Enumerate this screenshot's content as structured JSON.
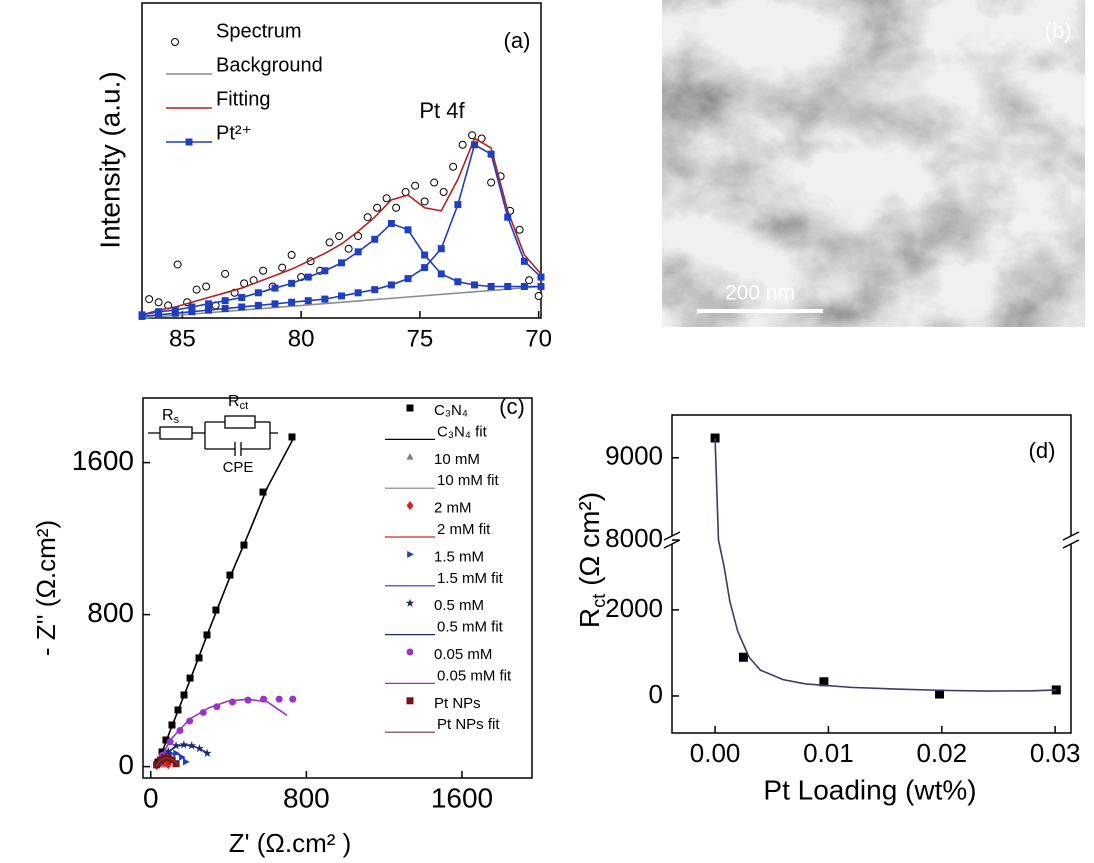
{
  "chart_data": [
    {
      "type": "line",
      "panel_label": "(a)",
      "annotation": "Pt 4f",
      "ylabel": "Intensity (a.u.)",
      "xlim": [
        86.7,
        69.9
      ],
      "xticks": [
        85,
        80,
        75,
        70
      ],
      "ylim": [
        0,
        100
      ],
      "legend": "upper left",
      "series": [
        {
          "name": "Spectrum",
          "color": "#000000",
          "style": "markers",
          "marker": "open-circle",
          "x": [
            86.4,
            86.0,
            85.6,
            85.2,
            84.8,
            84.4,
            84.0,
            83.6,
            83.2,
            82.8,
            82.4,
            82.0,
            81.6,
            81.2,
            80.8,
            80.4,
            80.0,
            79.6,
            79.2,
            78.8,
            78.4,
            78.0,
            77.6,
            77.2,
            76.8,
            76.4,
            76.0,
            75.6,
            75.2,
            74.8,
            74.4,
            74.0,
            73.6,
            73.2,
            72.8,
            72.4,
            72.0,
            71.6,
            71.2,
            70.8,
            70.4,
            70.0
          ],
          "values": [
            6,
            5,
            4,
            17,
            5,
            9,
            10,
            4,
            14,
            8,
            11,
            12,
            15,
            10,
            16,
            20,
            13,
            18,
            15,
            24,
            26,
            22,
            26,
            32,
            35,
            38,
            35,
            40,
            42,
            37,
            43,
            40,
            48,
            55,
            58,
            57,
            43,
            45,
            34,
            28,
            12,
            7
          ]
        },
        {
          "name": "Background",
          "color": "#8c8c8c",
          "style": "line",
          "x": [
            86.7,
            69.9
          ],
          "values": [
            0,
            10
          ]
        },
        {
          "name": "Fitting",
          "color": "#b22222",
          "style": "line",
          "x": [
            86.7,
            86,
            85.3,
            84.6,
            83.9,
            83.2,
            82.5,
            81.8,
            81.1,
            80.4,
            79.7,
            79,
            78.3,
            77.6,
            76.9,
            76.2,
            75.5,
            74.8,
            74.1,
            73.4,
            72.7,
            72,
            71.3,
            70.6,
            69.9
          ],
          "values": [
            1,
            2.5,
            3.5,
            5,
            6.5,
            8,
            9.5,
            11.5,
            13.5,
            15.5,
            18,
            20.5,
            23.5,
            27.5,
            32,
            37.5,
            39,
            35,
            34,
            44,
            57,
            54,
            34,
            20,
            14
          ]
        },
        {
          "name": "Pt²⁺",
          "color": "#1f3fbf",
          "style": "line+markers",
          "marker": "square",
          "x": [
            86.7,
            86,
            85.3,
            84.6,
            83.9,
            83.2,
            82.5,
            81.8,
            81.1,
            80.4,
            79.7,
            79,
            78.3,
            77.6,
            76.9,
            76.2,
            75.5,
            74.8,
            74.1,
            73.4,
            72.7,
            72,
            71.3,
            70.6,
            69.9,
            null,
            86.7,
            86,
            85.3,
            84.6,
            83.9,
            83.2,
            82.5,
            81.8,
            81.1,
            80.4,
            79.7,
            79,
            78.3,
            77.6,
            76.9,
            76.2,
            75.5,
            74.8,
            74.1,
            73.4,
            72.7,
            72,
            71.3,
            70.6,
            69.9
          ],
          "values": [
            1,
            2,
            2.5,
            3.5,
            4.5,
            5.5,
            6.5,
            8,
            9.5,
            11,
            13,
            15,
            17.5,
            21,
            25,
            30,
            28,
            20,
            14,
            11.5,
            10.5,
            10,
            10,
            10,
            10,
            null,
            0.5,
            1,
            1.5,
            2,
            2.5,
            3,
            3.5,
            4,
            4.5,
            5,
            5.5,
            6,
            7,
            8,
            9,
            10.5,
            12.5,
            16,
            22,
            36,
            55,
            52,
            32,
            18,
            13
          ]
        }
      ]
    },
    {
      "type": "image",
      "panel_label": "(b)",
      "scale_bar_label": "200 nm"
    },
    {
      "type": "scatter",
      "panel_label": "(c)",
      "xlabel": "Z' (Ω.cm² )",
      "ylabel": "- Z'' (Ω.cm²)",
      "xlim": [
        -40,
        1960
      ],
      "xticks": [
        0,
        800,
        1600
      ],
      "ylim": [
        -60,
        1940
      ],
      "yticks": [
        0,
        800,
        1600
      ],
      "legend": "upper right",
      "circuit": {
        "rs": [
          "R",
          "s"
        ],
        "rct": [
          "R",
          "ct"
        ],
        "cpe": "CPE"
      },
      "series": [
        {
          "name": "C₃N₄",
          "color": "#000000",
          "style": "markers",
          "marker": "square",
          "x": [
            37,
            58,
            78,
            109,
            140,
            171,
            202,
            248,
            289,
            335,
            407,
            479,
            577,
            726
          ],
          "values": [
            24,
            77,
            140,
            219,
            298,
            377,
            466,
            572,
            693,
            824,
            1008,
            1166,
            1445,
            1735
          ]
        },
        {
          "name": "C₃N₄ fit",
          "color": "#000000",
          "style": "line",
          "x": [
            30,
            100,
            200,
            300,
            400,
            500,
            600,
            740
          ],
          "values": [
            0,
            190,
            450,
            720,
            980,
            1220,
            1470,
            1740
          ]
        },
        {
          "name": "10 mM",
          "color": "#808080",
          "style": "markers",
          "marker": "triangle",
          "x": [
            30,
            45,
            60,
            70
          ],
          "values": [
            5,
            20,
            30,
            10
          ]
        },
        {
          "name": "10 mM fit",
          "color": "#808080",
          "style": "line",
          "x": [
            25,
            40,
            55,
            70,
            80
          ],
          "values": [
            0,
            18,
            28,
            20,
            5
          ]
        },
        {
          "name": "2 mM",
          "color": "#e02020",
          "style": "markers",
          "marker": "diamond",
          "x": [
            30,
            50,
            70,
            90
          ],
          "values": [
            5,
            20,
            25,
            10
          ]
        },
        {
          "name": "2 mM fit",
          "color": "#e02020",
          "style": "line",
          "x": [
            25,
            45,
            65,
            85,
            95
          ],
          "values": [
            0,
            18,
            25,
            14,
            4
          ]
        },
        {
          "name": "1.5 mM",
          "color": "#1f3fbf",
          "style": "markers",
          "marker": "triangle-right",
          "x": [
            40,
            70,
            100,
            130,
            160,
            180
          ],
          "values": [
            10,
            45,
            70,
            70,
            50,
            25
          ]
        },
        {
          "name": "1.5 mM fit",
          "color": "#1f3fbf",
          "style": "line",
          "x": [
            30,
            60,
            100,
            140,
            170,
            185
          ],
          "values": [
            0,
            38,
            68,
            66,
            42,
            20
          ]
        },
        {
          "name": "0.5 mM",
          "color": "#1a2a6c",
          "style": "markers",
          "marker": "star",
          "x": [
            50,
            90,
            130,
            170,
            210,
            250,
            290
          ],
          "values": [
            30,
            80,
            110,
            115,
            110,
            95,
            70
          ]
        },
        {
          "name": "0.5 mM fit",
          "color": "#1a2a6c",
          "style": "line",
          "x": [
            35,
            80,
            130,
            180,
            230,
            280,
            300
          ],
          "values": [
            0,
            70,
            108,
            114,
            104,
            78,
            60
          ]
        },
        {
          "name": "0.05 mM",
          "color": "#9933cc",
          "style": "markers",
          "marker": "circle",
          "x": [
            60,
            100,
            150,
            200,
            270,
            340,
            420,
            500,
            580,
            660,
            730
          ],
          "values": [
            60,
            130,
            190,
            240,
            285,
            315,
            340,
            350,
            355,
            355,
            355
          ]
        },
        {
          "name": "0.05 mM fit",
          "color": "#9933cc",
          "style": "line",
          "x": [
            40,
            100,
            200,
            300,
            400,
            500,
            600,
            700
          ],
          "values": [
            20,
            140,
            250,
            310,
            345,
            355,
            340,
            270
          ]
        },
        {
          "name": "Pt NPs",
          "color": "#7b1010",
          "style": "markers",
          "marker": "square",
          "x": [
            30,
            50,
            70,
            90,
            110,
            130
          ],
          "values": [
            10,
            35,
            45,
            45,
            35,
            15
          ]
        },
        {
          "name": "Pt NPs fit",
          "color": "#6b3a3a",
          "style": "line",
          "x": [
            25,
            50,
            75,
            100,
            125,
            140
          ],
          "values": [
            0,
            32,
            46,
            42,
            28,
            10
          ]
        }
      ]
    },
    {
      "type": "line",
      "panel_label": "(d)",
      "xlabel": "Pt Loading (wt%)",
      "ylabel": [
        "R",
        "ct",
        " (Ω cm²)"
      ],
      "xlim": [
        -0.0038,
        0.0314
      ],
      "xticks": [
        {
          "value": 0,
          "label": "0.00"
        },
        0.01,
        0.02,
        0.03
      ],
      "ylim": [
        -860,
        9520
      ],
      "y_break": [
        3600,
        8000
      ],
      "yticks": [
        0,
        2000,
        8000,
        9000
      ],
      "series": [
        {
          "color": "#000000",
          "style": "markers",
          "marker": "square",
          "x": [
            0,
            0.0025,
            0.0096,
            0.0198,
            0.0301
          ],
          "values": [
            9240,
            900,
            330,
            45,
            140
          ]
        },
        {
          "color": "#3d3a66",
          "style": "line",
          "x": [
            0,
            0.0003,
            0.0008,
            0.0013,
            0.002,
            0.003,
            0.004,
            0.006,
            0.008,
            0.012,
            0.016,
            0.02,
            0.024,
            0.028,
            0.0301
          ],
          "values": [
            9240,
            8000,
            3000,
            2200,
            1500,
            900,
            600,
            380,
            280,
            200,
            160,
            130,
            115,
            120,
            140
          ]
        }
      ]
    }
  ]
}
